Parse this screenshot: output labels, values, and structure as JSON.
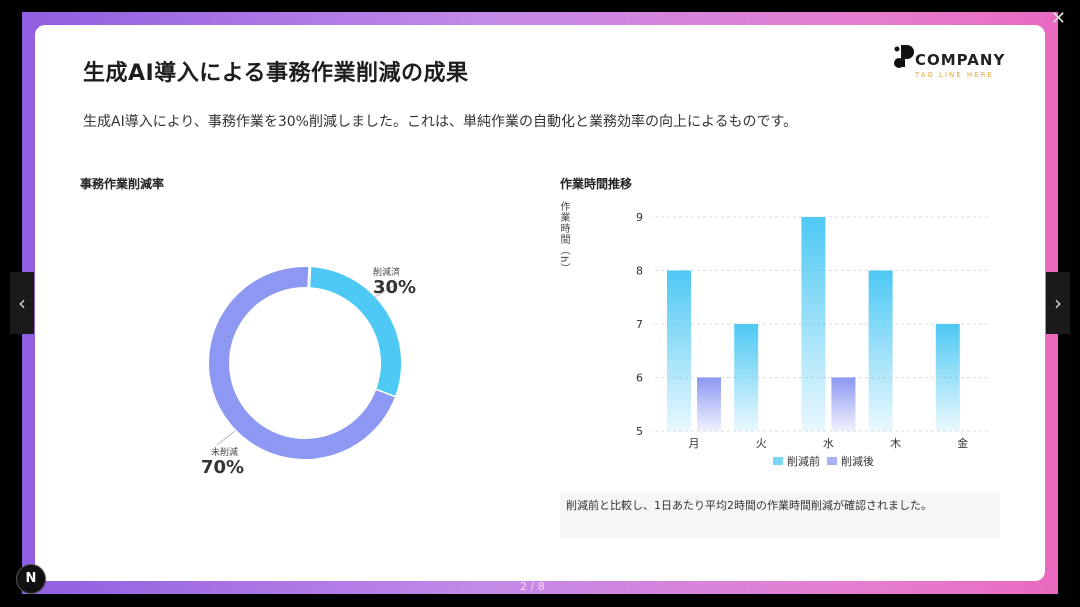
{
  "slide": {
    "title": "生成AI導入による事務作業削減の成果",
    "subtitle": "生成AI導入により、事務作業を30%削減しました。これは、単純作業の自動化と業務効率の向上によるものです。"
  },
  "logo": {
    "name": "COMPANY",
    "tagline": "TAG LINE HERE"
  },
  "donut": {
    "section_title": "事務作業削減率",
    "reduced_label": "削減済",
    "reduced_pct": "30%",
    "remaining_label": "未削減",
    "remaining_pct": "70%"
  },
  "bar": {
    "section_title": "作業時間推移",
    "ylabel": "作業時間（h）",
    "note": "削減前と比較し、1日あたり平均2時間の作業時間削減が確認されました。"
  },
  "chart_data": [
    {
      "type": "pie",
      "title": "事務作業削減率",
      "categories": [
        "削減済",
        "未削減"
      ],
      "values": [
        30,
        70
      ],
      "colors": [
        "#4ec8f4",
        "#8c98f2"
      ]
    },
    {
      "type": "bar",
      "title": "作業時間推移",
      "categories": [
        "月",
        "火",
        "水",
        "木",
        "金"
      ],
      "series": [
        {
          "name": "削減前",
          "values": [
            8,
            7,
            9,
            8,
            7
          ],
          "color": "#4ec8f4"
        },
        {
          "name": "削減後",
          "values": [
            6,
            null,
            6,
            null,
            null
          ],
          "color": "#8c98f2"
        }
      ],
      "ylabel": "作業時間（h）",
      "ylim": [
        5,
        9
      ],
      "yticks": [
        5,
        6,
        7,
        8,
        9
      ],
      "grid": true,
      "legend": "bottom"
    }
  ],
  "ui": {
    "close_glyph": "✕",
    "badge": "N",
    "pager": "2 / 8",
    "prev_glyph": "‹",
    "next_glyph": "›"
  }
}
